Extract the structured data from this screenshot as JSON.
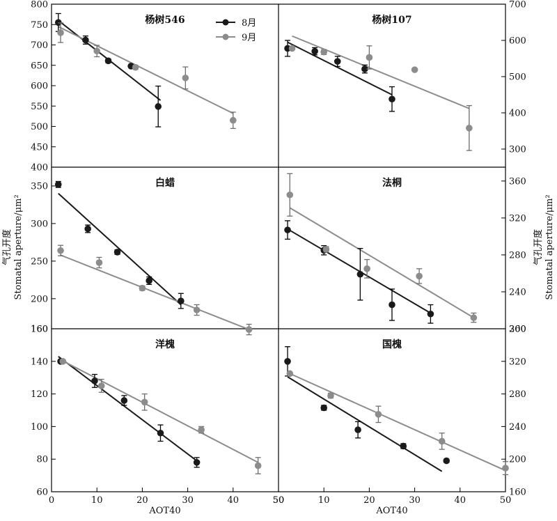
{
  "chart_data": {
    "type": "scatter",
    "xlabel": "AOT40",
    "ylabel_zh": "气孔开度",
    "ylabel_en": "Stomatal aperture/μm²",
    "legend": [
      {
        "name": "8月",
        "color": "#1a1a1a"
      },
      {
        "name": "9月",
        "color": "#8c8c8c"
      }
    ],
    "x_ticks_left": [
      "0",
      "10",
      "20",
      "30",
      "40",
      "50"
    ],
    "x_ticks_right": [
      "50",
      "10",
      "20",
      "30",
      "40",
      "50"
    ],
    "panels": [
      {
        "id": "yang546",
        "title": "杨树546",
        "col": 0,
        "row": 0,
        "yaxis_side": "left",
        "ylim": [
          400,
          800
        ],
        "xlim": [
          0,
          49
        ],
        "yticks": [
          400,
          450,
          500,
          550,
          600,
          650,
          700,
          750,
          800
        ],
        "series": [
          {
            "name": "8月",
            "points": [
              {
                "x": 1.5,
                "y": 755,
                "err": 22
              },
              {
                "x": 7.5,
                "y": 712,
                "err": 10
              },
              {
                "x": 12.5,
                "y": 661,
                "err": 5
              },
              {
                "x": 17.5,
                "y": 648,
                "err": 3
              },
              {
                "x": 23.5,
                "y": 549,
                "err": 50
              }
            ],
            "fit": [
              [
                1.5,
                760
              ],
              [
                24,
                564
              ]
            ]
          },
          {
            "name": "9月",
            "points": [
              {
                "x": 2.0,
                "y": 730,
                "err": 24
              },
              {
                "x": 10.0,
                "y": 685,
                "err": 14
              },
              {
                "x": 18.5,
                "y": 645,
                "err": 5
              },
              {
                "x": 29.5,
                "y": 619,
                "err": 27
              },
              {
                "x": 40.0,
                "y": 515,
                "err": 20
              }
            ],
            "fit": [
              [
                1.5,
                745
              ],
              [
                40,
                532
              ]
            ]
          }
        ]
      },
      {
        "id": "yang107",
        "title": "杨树107",
        "col": 1,
        "row": 0,
        "yaxis_side": "right",
        "ylim": [
          250,
          700
        ],
        "xlim": [
          1,
          50
        ],
        "yticks": [
          300,
          400,
          500,
          600,
          700
        ],
        "series": [
          {
            "name": "8月",
            "points": [
              {
                "x": 2,
                "y": 578,
                "err": 22
              },
              {
                "x": 8,
                "y": 570,
                "err": 10
              },
              {
                "x": 13,
                "y": 542,
                "err": 14
              },
              {
                "x": 19,
                "y": 521,
                "err": 11
              },
              {
                "x": 25,
                "y": 438,
                "err": 34
              }
            ],
            "fit": [
              [
                2,
                595
              ],
              [
                25,
                450
              ]
            ]
          },
          {
            "name": "9月",
            "points": [
              {
                "x": 3,
                "y": 578,
                "err": 0
              },
              {
                "x": 10,
                "y": 568,
                "err": 7
              },
              {
                "x": 20,
                "y": 553,
                "err": 32
              },
              {
                "x": 30,
                "y": 519,
                "err": 0
              },
              {
                "x": 42,
                "y": 358,
                "err": 62
              }
            ],
            "fit": [
              [
                3,
                612
              ],
              [
                42,
                412
              ]
            ]
          }
        ]
      },
      {
        "id": "baila",
        "title": "白蜡",
        "col": 0,
        "row": 1,
        "yaxis_side": "left",
        "ylim": [
          160,
          375
        ],
        "xlim": [
          0,
          49
        ],
        "yticks": [
          160,
          200,
          250,
          300,
          350
        ],
        "ytick_labels": [
          "160",
          "200",
          "250",
          "300",
          "350"
        ],
        "series": [
          {
            "name": "8月",
            "points": [
              {
                "x": 1.5,
                "y": 352,
                "err": 4
              },
              {
                "x": 8,
                "y": 293,
                "err": 5
              },
              {
                "x": 14.5,
                "y": 262,
                "err": 3
              },
              {
                "x": 21.5,
                "y": 224,
                "err": 5
              },
              {
                "x": 28.5,
                "y": 197,
                "err": 10
              }
            ],
            "fit": [
              [
                1.5,
                340
              ],
              [
                28.5,
                192
              ]
            ]
          },
          {
            "name": "9月",
            "points": [
              {
                "x": 2,
                "y": 264,
                "err": 7
              },
              {
                "x": 10.5,
                "y": 248,
                "err": 7
              },
              {
                "x": 20,
                "y": 214,
                "err": 3
              },
              {
                "x": 32,
                "y": 185,
                "err": 7
              },
              {
                "x": 43.5,
                "y": 159,
                "err": 7
              }
            ],
            "fit": [
              [
                2,
                258
              ],
              [
                43.5,
                159
              ]
            ]
          }
        ]
      },
      {
        "id": "fatong",
        "title": "法桐",
        "col": 1,
        "row": 1,
        "yaxis_side": "right",
        "ylim": [
          200,
          375
        ],
        "xlim": [
          1,
          50
        ],
        "yticks": [
          200,
          240,
          280,
          320,
          360
        ],
        "series": [
          {
            "name": "8月",
            "points": [
              {
                "x": 2,
                "y": 307,
                "err": 10
              },
              {
                "x": 10,
                "y": 285,
                "err": 5
              },
              {
                "x": 18,
                "y": 259,
                "err": 28
              },
              {
                "x": 25,
                "y": 226,
                "err": 17
              },
              {
                "x": 33.5,
                "y": 216,
                "err": 10
              }
            ],
            "fit": [
              [
                2,
                308
              ],
              [
                33.5,
                217
              ]
            ]
          },
          {
            "name": "9月",
            "points": [
              {
                "x": 2.5,
                "y": 345,
                "err": 23
              },
              {
                "x": 10.5,
                "y": 286,
                "err": 3
              },
              {
                "x": 19.5,
                "y": 265,
                "err": 10
              },
              {
                "x": 31,
                "y": 257,
                "err": 8
              },
              {
                "x": 43,
                "y": 212,
                "err": 5
              }
            ],
            "fit": [
              [
                2.5,
                331
              ],
              [
                43,
                212
              ]
            ]
          }
        ]
      },
      {
        "id": "yanghuai",
        "title": "洋槐",
        "col": 0,
        "row": 2,
        "yaxis_side": "left",
        "ylim": [
          60,
          160
        ],
        "xlim": [
          0,
          49
        ],
        "yticks": [
          60,
          80,
          100,
          120,
          140,
          160
        ],
        "series": [
          {
            "name": "8月",
            "points": [
              {
                "x": 2,
                "y": 140,
                "err": 1
              },
              {
                "x": 9.5,
                "y": 128,
                "err": 4
              },
              {
                "x": 16,
                "y": 116,
                "err": 3
              },
              {
                "x": 24,
                "y": 96,
                "err": 5
              },
              {
                "x": 32,
                "y": 78,
                "err": 3
              }
            ],
            "fit": [
              [
                1.5,
                143
              ],
              [
                32,
                79
              ]
            ]
          },
          {
            "name": "9月",
            "points": [
              {
                "x": 2.5,
                "y": 140,
                "err": 1
              },
              {
                "x": 11,
                "y": 125,
                "err": 4
              },
              {
                "x": 20.5,
                "y": 115,
                "err": 5
              },
              {
                "x": 33,
                "y": 98,
                "err": 2
              },
              {
                "x": 45.5,
                "y": 76,
                "err": 5
              }
            ],
            "fit": [
              [
                2,
                141
              ],
              [
                45.5,
                78
              ]
            ]
          }
        ]
      },
      {
        "id": "guohuai",
        "title": "国槐",
        "col": 1,
        "row": 2,
        "yaxis_side": "right",
        "ylim": [
          160,
          360
        ],
        "xlim": [
          1,
          50
        ],
        "yticks": [
          160,
          200,
          240,
          280,
          320,
          360
        ],
        "series": [
          {
            "name": "8月",
            "points": [
              {
                "x": 2,
                "y": 320,
                "err": 18
              },
              {
                "x": 10,
                "y": 263,
                "err": 3
              },
              {
                "x": 17.5,
                "y": 236,
                "err": 10
              },
              {
                "x": 27.5,
                "y": 216,
                "err": 3
              },
              {
                "x": 37,
                "y": 198,
                "err": 2
              }
            ],
            "fit": [
              [
                2,
                301
              ],
              [
                36,
                185
              ]
            ]
          },
          {
            "name": "9月",
            "points": [
              {
                "x": 2.5,
                "y": 305,
                "err": 2
              },
              {
                "x": 11.5,
                "y": 278,
                "err": 3
              },
              {
                "x": 22,
                "y": 255,
                "err": 10
              },
              {
                "x": 36,
                "y": 222,
                "err": 10
              },
              {
                "x": 50,
                "y": 189,
                "err": 8
              }
            ],
            "fit": [
              [
                2.5,
                305
              ],
              [
                50,
                186
              ]
            ]
          }
        ]
      }
    ]
  }
}
